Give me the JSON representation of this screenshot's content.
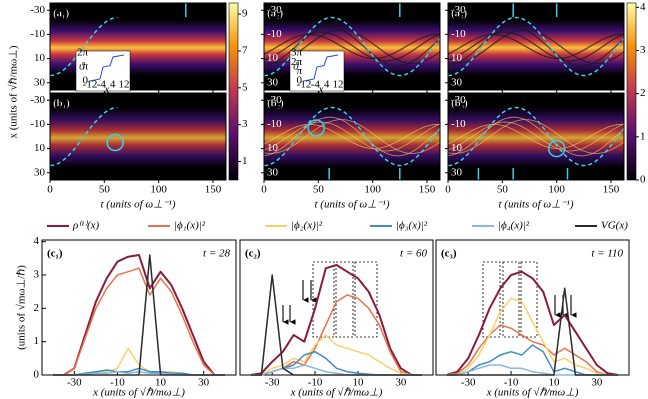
{
  "chart_data": [
    {
      "type": "heatmap",
      "title": "(a₁)",
      "xlim": [
        0,
        162
      ],
      "xticks": [
        0,
        50,
        100,
        150
      ],
      "ylim": [
        -36,
        36
      ],
      "y_inverted": true,
      "yticks": [
        -30,
        -10,
        10,
        30
      ],
      "ylabel": "x (units of √ℏ/mω⊥)",
      "clim": [
        0,
        9.6
      ],
      "cticks": [
        1,
        3,
        5,
        7,
        9
      ],
      "inset": {
        "ylabel": "ϑ",
        "xlabel": "x",
        "xticks": [
          -12,
          -4,
          4,
          12
        ],
        "yticks": [
          {
            "value": 0,
            "label": "0"
          },
          {
            "value": 3.14,
            "label": "π"
          },
          {
            "value": 6.28,
            "label": "2π"
          }
        ]
      }
    },
    {
      "type": "heatmap",
      "title": "(a₂)",
      "xlim": [
        0,
        162
      ],
      "xticks": [
        0,
        50,
        100,
        150
      ],
      "ylim": [
        -36,
        36
      ],
      "y_inverted": true,
      "yticks": [
        -30,
        -10,
        10,
        30
      ],
      "inset": {
        "ylabel": "ϑ",
        "xlabel": "x",
        "xticks": [
          -12,
          -4,
          4,
          12
        ],
        "yticks": [
          {
            "value": 0,
            "label": "0"
          },
          {
            "value": 3.14,
            "label": "π"
          },
          {
            "value": 6.28,
            "label": "2π"
          },
          {
            "value": 9.42,
            "label": "3π"
          }
        ]
      }
    },
    {
      "type": "heatmap",
      "title": "(a₃)",
      "xlim": [
        0,
        162
      ],
      "xticks": [
        0,
        50,
        100,
        150
      ],
      "ylim": [
        -36,
        36
      ],
      "y_inverted": true,
      "yticks": [
        -30,
        -10,
        10,
        30
      ],
      "clim": [
        0,
        4.1
      ],
      "cticks": [
        0,
        1,
        2,
        3,
        4
      ]
    },
    {
      "type": "heatmap",
      "title": "(b₁)",
      "xlim": [
        0,
        162
      ],
      "xticks": [
        0,
        50,
        100,
        150
      ],
      "ylim": [
        -36,
        36
      ],
      "y_inverted": true,
      "yticks": [
        -30,
        -10,
        10,
        30
      ],
      "xlabel": "t (units of ω⊥⁻¹)"
    },
    {
      "type": "heatmap",
      "title": "(b₂)",
      "xlim": [
        0,
        162
      ],
      "xticks": [
        0,
        50,
        100,
        150
      ],
      "ylim": [
        -36,
        36
      ],
      "y_inverted": true,
      "yticks": [
        -30,
        -10,
        10,
        30
      ],
      "xlabel": "t (units of ω⊥⁻¹)"
    },
    {
      "type": "heatmap",
      "title": "(b₃)",
      "xlim": [
        0,
        162
      ],
      "xticks": [
        0,
        50,
        100,
        150
      ],
      "ylim": [
        -36,
        36
      ],
      "y_inverted": true,
      "yticks": [
        -30,
        -10,
        10,
        30
      ],
      "xlabel": "t (units of ω⊥⁻¹)"
    },
    {
      "type": "line",
      "title": "(c₁)",
      "annotation": "t = 28",
      "xlim": [
        -45,
        45
      ],
      "xticks": [
        -30,
        -10,
        10,
        30
      ],
      "ylim": [
        0,
        4.05
      ],
      "yticks": [
        0,
        1,
        2,
        3,
        4
      ],
      "ylabel": "(units of √mω⊥/ℏ)",
      "xlabel": "x (units of √ℏ/mω⊥)",
      "x": [
        -40,
        -35,
        -30,
        -25,
        -20,
        -15,
        -10,
        -5,
        0,
        5,
        10,
        15,
        20,
        25,
        30,
        35,
        40
      ],
      "series": [
        {
          "name": "ρ⁽¹⁾(x)",
          "color": "#8b1a3c",
          "values": [
            0,
            0,
            0.2,
            1.2,
            2.2,
            2.9,
            3.4,
            3.55,
            3.6,
            2.6,
            3.1,
            2.7,
            2.0,
            1.2,
            0.4,
            0,
            0
          ]
        },
        {
          "name": "|ϕ₁(x)|²",
          "color": "#e8734a",
          "values": [
            0,
            0,
            0.2,
            1.1,
            2.0,
            2.6,
            3.0,
            3.1,
            3.2,
            2.4,
            2.9,
            2.5,
            1.8,
            1.0,
            0.3,
            0,
            0
          ]
        },
        {
          "name": "|ϕ₂(x)|²",
          "color": "#f5d36b",
          "values": [
            0,
            0,
            0,
            0.05,
            0.1,
            0.1,
            0.2,
            0.8,
            0.3,
            0.1,
            0.1,
            0.1,
            0.05,
            0,
            0,
            0,
            0
          ]
        },
        {
          "name": "|ϕ₃(x)|²",
          "color": "#3f8cc6",
          "values": [
            0,
            0,
            0,
            0.05,
            0.1,
            0.15,
            0.1,
            0.1,
            0.2,
            0.1,
            0.1,
            0.05,
            0.05,
            0,
            0,
            0,
            0
          ]
        },
        {
          "name": "|ϕ₄(x)|²",
          "color": "#86b8dc",
          "values": [
            0,
            0,
            0,
            0.02,
            0.05,
            0.05,
            0.1,
            0.05,
            0.1,
            0.05,
            0.05,
            0.02,
            0,
            0,
            0,
            0,
            0
          ]
        },
        {
          "name": "VG(x)",
          "color": "#2b2b2b",
          "values": [
            0,
            0,
            0,
            0,
            0,
            0,
            0,
            0,
            0,
            3.6,
            0,
            0,
            0,
            0,
            0,
            0,
            0
          ]
        }
      ]
    },
    {
      "type": "line",
      "title": "(c₂)",
      "annotation": "t = 60",
      "xlim": [
        -45,
        45
      ],
      "xticks": [
        -30,
        -10,
        10,
        30
      ],
      "ylim": [
        0,
        4.05
      ],
      "xlabel": "x (units of √ℏ/mω⊥)",
      "x": [
        -40,
        -35,
        -30,
        -25,
        -20,
        -15,
        -10,
        -5,
        0,
        5,
        10,
        15,
        20,
        25,
        30,
        35,
        40
      ],
      "series": [
        {
          "name": "ρ⁽¹⁾(x)",
          "color": "#8b1a3c",
          "values": [
            0,
            0.05,
            0.4,
            0.7,
            1.2,
            1.0,
            2.0,
            3.2,
            3.3,
            3.1,
            2.9,
            2.5,
            1.8,
            0.8,
            0.2,
            0,
            0
          ]
        },
        {
          "name": "|ϕ₁(x)|²",
          "color": "#e8734a",
          "values": [
            0,
            0,
            0.1,
            0.2,
            0.4,
            0.3,
            0.8,
            1.5,
            2.2,
            2.4,
            2.3,
            2.0,
            1.5,
            0.7,
            0.1,
            0,
            0
          ]
        },
        {
          "name": "|ϕ₂(x)|²",
          "color": "#f5d36b",
          "values": [
            0,
            0,
            0.2,
            0.3,
            0.5,
            0.4,
            0.9,
            1.2,
            0.9,
            0.8,
            0.7,
            0.6,
            0.4,
            0.2,
            0.05,
            0,
            0
          ]
        },
        {
          "name": "|ϕ₃(x)|²",
          "color": "#3f8cc6",
          "values": [
            0,
            0,
            0.1,
            0.2,
            0.3,
            0.6,
            0.7,
            0.5,
            0.2,
            0.1,
            0.05,
            0.02,
            0,
            0,
            0,
            0,
            0
          ]
        },
        {
          "name": "|ϕ₄(x)|²",
          "color": "#86b8dc",
          "values": [
            0,
            0,
            0.1,
            0.2,
            0.2,
            0.3,
            0.2,
            0.1,
            0.05,
            0,
            0,
            0,
            0,
            0,
            0,
            0,
            0
          ]
        },
        {
          "name": "VG(x)",
          "color": "#2b2b2b",
          "values": [
            0,
            0,
            3.0,
            0.2,
            0,
            0,
            0,
            0,
            0,
            0,
            0,
            0,
            0,
            0,
            0,
            0,
            0
          ]
        }
      ]
    },
    {
      "type": "line",
      "title": "(c₃)",
      "annotation": "t = 110",
      "xlim": [
        -45,
        45
      ],
      "xticks": [
        -30,
        -10,
        10,
        30
      ],
      "ylim": [
        0,
        4.05
      ],
      "xlabel": "x (units of √ℏ/mω⊥)",
      "x": [
        -40,
        -35,
        -30,
        -25,
        -20,
        -15,
        -10,
        -5,
        0,
        5,
        10,
        15,
        20,
        25,
        30,
        35,
        40
      ],
      "series": [
        {
          "name": "ρ⁽¹⁾(x)",
          "color": "#8b1a3c",
          "values": [
            0,
            0.1,
            0.5,
            1.2,
            2.0,
            2.6,
            3.0,
            3.1,
            2.9,
            2.5,
            1.5,
            1.8,
            1.3,
            0.8,
            0.3,
            0.05,
            0
          ]
        },
        {
          "name": "|ϕ₁(x)|²",
          "color": "#e8734a",
          "values": [
            0,
            0.05,
            0.3,
            0.8,
            1.2,
            1.5,
            1.4,
            1.2,
            1.0,
            0.9,
            0.6,
            0.8,
            0.6,
            0.4,
            0.1,
            0,
            0
          ]
        },
        {
          "name": "|ϕ₂(x)|²",
          "color": "#f5d36b",
          "values": [
            0,
            0,
            0.2,
            0.6,
            1.2,
            1.9,
            2.3,
            2.2,
            1.6,
            1.0,
            0.4,
            0.5,
            0.3,
            0.2,
            0.05,
            0,
            0
          ]
        },
        {
          "name": "|ϕ₃(x)|²",
          "color": "#3f8cc6",
          "values": [
            0,
            0,
            0.1,
            0.3,
            0.4,
            0.6,
            0.7,
            0.6,
            0.9,
            0.7,
            0.1,
            0.2,
            0.1,
            0,
            0,
            0,
            0
          ]
        },
        {
          "name": "|ϕ₄(x)|²",
          "color": "#86b8dc",
          "values": [
            0,
            0,
            0.1,
            0.2,
            0.3,
            0.3,
            0.2,
            0.2,
            0.1,
            0.05,
            0,
            0,
            0,
            0,
            0,
            0,
            0
          ]
        },
        {
          "name": "VG(x)",
          "color": "#2b2b2b",
          "values": [
            0,
            0,
            0,
            0,
            0,
            0,
            0,
            0,
            0,
            0,
            0,
            2.6,
            0,
            0,
            0,
            0,
            0
          ]
        }
      ]
    }
  ]
}
